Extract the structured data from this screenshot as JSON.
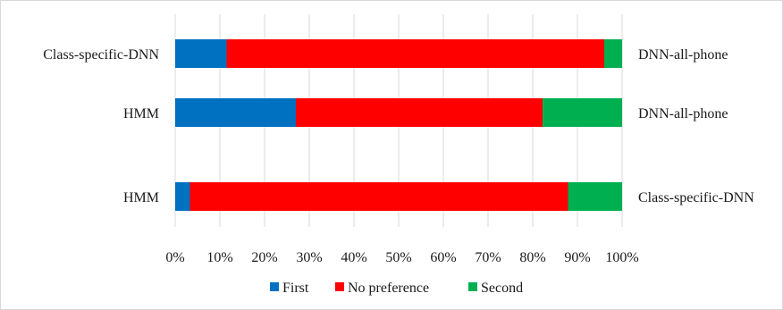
{
  "chart_data": {
    "type": "bar",
    "orientation": "horizontal",
    "stacked": "percent",
    "categories_left": [
      "Class-specific-DNN",
      "HMM",
      "HMM"
    ],
    "categories_right": [
      "DNN-all-phone",
      "DNN-all-phone",
      "Class-specific-DNN"
    ],
    "series": [
      {
        "name": "First",
        "color": "#0070c0",
        "values": [
          11.5,
          27.0,
          3.3
        ]
      },
      {
        "name": "No preference",
        "color": "#ff0000",
        "values": [
          84.5,
          55.2,
          84.6
        ]
      },
      {
        "name": "Second",
        "color": "#00b050",
        "values": [
          4.0,
          17.8,
          12.1
        ]
      }
    ],
    "x_ticks": [
      "0%",
      "10%",
      "20%",
      "30%",
      "40%",
      "50%",
      "60%",
      "70%",
      "80%",
      "90%",
      "100%"
    ],
    "xlim": [
      0,
      100
    ],
    "grid": true,
    "legend_position": "bottom",
    "title": "",
    "xlabel": "",
    "ylabel": ""
  }
}
